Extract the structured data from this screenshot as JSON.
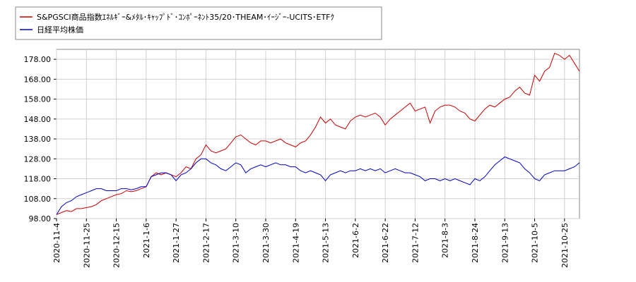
{
  "chart_data": {
    "type": "line",
    "categories": [
      "2020-11-4",
      null,
      null,
      null,
      null,
      null,
      "2020-11-25",
      null,
      null,
      null,
      null,
      null,
      "2020-12-15",
      null,
      null,
      null,
      null,
      null,
      "2021-1-6",
      null,
      null,
      null,
      null,
      null,
      "2021-1-27",
      null,
      null,
      null,
      null,
      null,
      "2021-2-17",
      null,
      null,
      null,
      null,
      null,
      "2021-3-10",
      null,
      null,
      null,
      null,
      null,
      "2021-3-30",
      null,
      null,
      null,
      null,
      null,
      "2021-4-19",
      null,
      null,
      null,
      null,
      null,
      "2021-5-13",
      null,
      null,
      null,
      null,
      null,
      "2021-6-2",
      null,
      null,
      null,
      null,
      null,
      "2021-6-22",
      null,
      null,
      null,
      null,
      null,
      "2021-7-12",
      null,
      null,
      null,
      null,
      null,
      "2021-8-3",
      null,
      null,
      null,
      null,
      null,
      "2021-8-24",
      null,
      null,
      null,
      null,
      null,
      "2021-9-13",
      null,
      null,
      null,
      null,
      null,
      "2021-10-5",
      null,
      null,
      null,
      null,
      null,
      "2021-10-25",
      null,
      null,
      null
    ],
    "series": [
      {
        "name": "S&PGSCI商品指数ｴﾈﾙｷﾞｰ&ﾒﾀﾙ･ｷｬｯﾌﾟﾄﾞ･ｺﾝﾎﾟｰﾈﾝﾄ35/20･THEAM･ｲｰｼﾞｰ-UCITS･ETFｸ",
        "color": "#cc0000",
        "values": [
          100,
          101,
          102,
          101.5,
          103,
          103,
          103.5,
          104,
          105,
          107,
          108,
          109,
          110,
          110.5,
          112,
          111.5,
          112,
          113,
          114,
          119,
          121,
          120,
          121,
          120,
          119,
          121,
          124,
          123,
          128,
          130,
          135,
          132,
          131,
          132,
          133,
          136,
          139,
          140,
          138,
          136,
          135,
          137,
          137,
          136,
          137,
          138,
          136,
          135,
          134,
          136,
          137,
          140,
          144,
          149,
          146,
          148,
          145,
          144,
          143,
          147,
          149,
          150,
          149,
          150,
          151,
          149,
          145,
          148,
          150,
          152,
          154,
          156,
          152,
          153,
          154,
          146,
          152,
          154,
          155,
          155,
          154,
          152,
          151,
          148,
          147,
          150,
          153,
          155,
          154,
          156,
          158,
          159,
          162,
          164,
          161,
          160,
          170,
          167,
          172,
          174,
          181,
          180,
          178,
          180,
          176,
          172
        ]
      },
      {
        "name": "日経平均株価",
        "color": "#0000cc",
        "values": [
          100,
          104,
          106,
          107,
          109,
          110,
          111,
          112,
          113,
          113,
          112,
          112,
          112,
          113,
          113,
          112.5,
          113,
          114,
          114,
          119,
          120,
          121,
          121,
          120,
          117,
          120,
          121,
          123,
          126,
          128,
          128,
          126,
          125,
          123,
          122,
          124,
          126,
          125,
          121,
          123,
          124,
          125,
          124,
          125,
          126,
          125,
          125,
          124,
          124,
          122,
          121,
          122,
          121,
          120,
          117,
          120,
          121,
          122,
          121,
          122,
          122,
          123,
          122,
          123,
          122,
          123,
          121,
          122,
          123,
          122,
          121,
          121,
          120,
          119,
          117,
          118,
          118,
          117,
          118,
          117,
          118,
          117,
          116,
          115,
          118,
          117,
          119,
          122,
          125,
          127,
          129,
          128,
          127,
          126,
          123,
          121,
          118,
          117,
          120,
          121,
          122,
          122,
          122,
          123,
          124,
          126
        ]
      }
    ],
    "ylim": [
      98,
      183
    ],
    "yticks": [
      {
        "value": 98,
        "label": "98.00"
      },
      {
        "value": 108,
        "label": "108.00"
      },
      {
        "value": 118,
        "label": "118.00"
      },
      {
        "value": 128,
        "label": "128.00"
      },
      {
        "value": 138,
        "label": "138.00"
      },
      {
        "value": 148,
        "label": "148.00"
      },
      {
        "value": 158,
        "label": "158.00"
      },
      {
        "value": 168,
        "label": "168.00"
      },
      {
        "value": 178,
        "label": "178.00"
      }
    ],
    "grid": true,
    "legend": "top-left"
  }
}
